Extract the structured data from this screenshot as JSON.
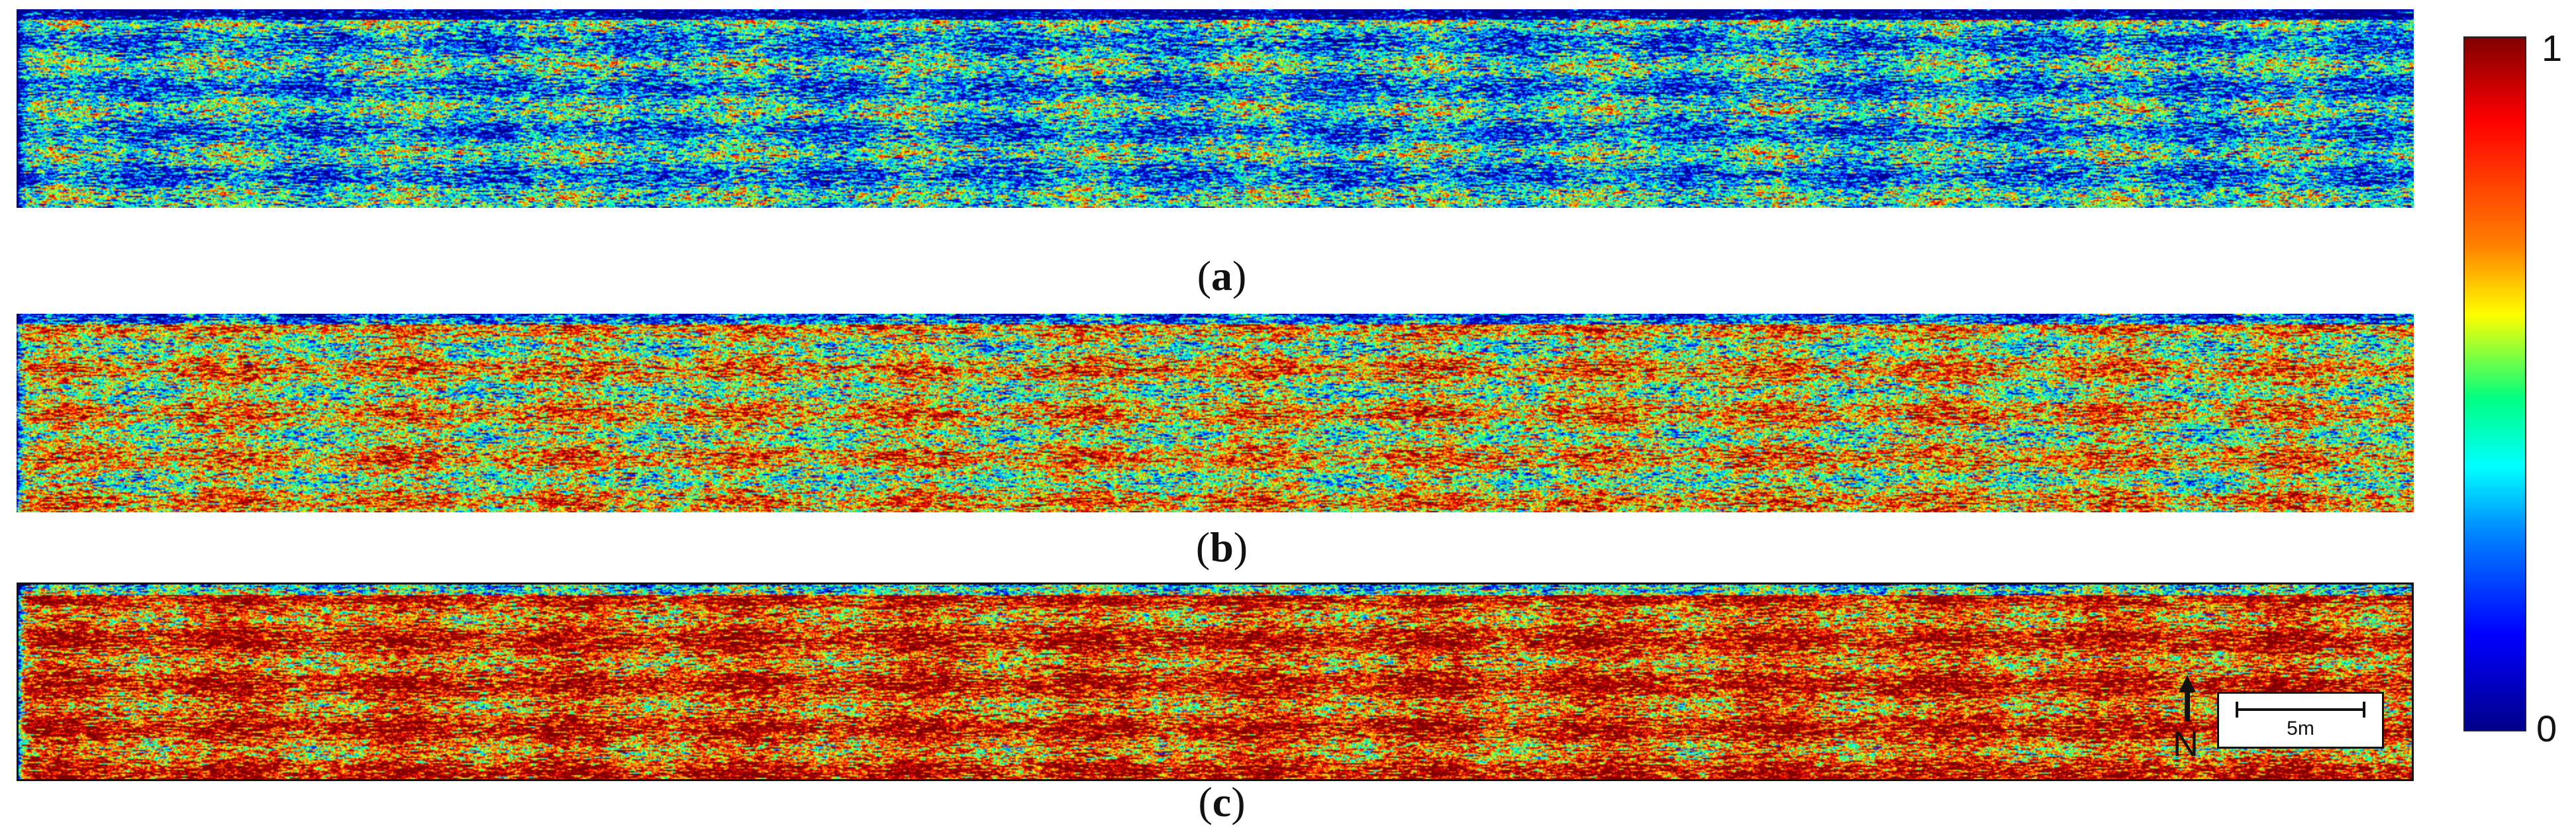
{
  "panels": [
    {
      "id": "a",
      "caption": "a",
      "mean_index": 0.35
    },
    {
      "id": "b",
      "caption": "b",
      "mean_index": 0.62
    },
    {
      "id": "c",
      "caption": "c",
      "mean_index": 0.82
    }
  ],
  "colorbar": {
    "max_label": "1",
    "min_label": "0",
    "colors": [
      "#800000",
      "#ff0000",
      "#ff8000",
      "#ffff00",
      "#00ff80",
      "#00ffff",
      "#0080ff",
      "#0000ff",
      "#00008b"
    ]
  },
  "north_arrow": {
    "label": "N"
  },
  "scale_bar": {
    "label": "5m"
  }
}
